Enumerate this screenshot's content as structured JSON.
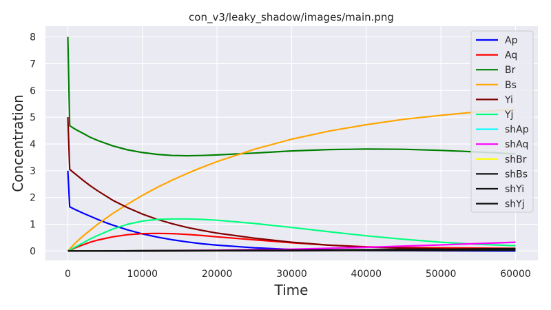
{
  "chart_data": {
    "type": "line",
    "title": "con_v3/leaky_shadow/images/main.png",
    "xlabel": "Time",
    "ylabel": "Concentration",
    "xlim": [
      -3000,
      63000
    ],
    "ylim": [
      -0.35,
      8.4
    ],
    "xticks": [
      0,
      10000,
      20000,
      30000,
      40000,
      50000,
      60000
    ],
    "yticks": [
      0,
      1,
      2,
      3,
      4,
      5,
      6,
      7,
      8
    ],
    "grid": true,
    "legend_position": "top-right",
    "series": [
      {
        "name": "Ap",
        "color": "#0000ff",
        "x": [
          0,
          250,
          1000,
          2000,
          3000,
          4000,
          5000,
          6000,
          8000,
          10000,
          12000,
          14000,
          16000,
          18000,
          20000,
          25000,
          30000,
          40000,
          50000,
          60000
        ],
        "y": [
          3.0,
          1.65,
          1.55,
          1.42,
          1.3,
          1.18,
          1.07,
          0.97,
          0.79,
          0.64,
          0.52,
          0.42,
          0.34,
          0.27,
          0.22,
          0.12,
          0.06,
          0.02,
          0.01,
          0.0
        ]
      },
      {
        "name": "Aq",
        "color": "#ff0000",
        "x": [
          0,
          250,
          1000,
          2000,
          3000,
          4000,
          6000,
          8000,
          10000,
          12000,
          14000,
          16000,
          18000,
          20000,
          25000,
          30000,
          35000,
          40000,
          45000,
          50000,
          55000,
          60000
        ],
        "y": [
          0.0,
          0.02,
          0.12,
          0.23,
          0.33,
          0.41,
          0.53,
          0.61,
          0.65,
          0.66,
          0.65,
          0.62,
          0.58,
          0.53,
          0.42,
          0.31,
          0.22,
          0.16,
          0.13,
          0.12,
          0.11,
          0.1
        ]
      },
      {
        "name": "Br",
        "color": "#008000",
        "x": [
          0,
          250,
          1000,
          2000,
          3000,
          4000,
          6000,
          8000,
          10000,
          12000,
          14000,
          16000,
          18000,
          20000,
          25000,
          30000,
          35000,
          40000,
          45000,
          50000,
          55000,
          60000
        ],
        "y": [
          8.0,
          4.68,
          4.55,
          4.4,
          4.25,
          4.13,
          3.93,
          3.78,
          3.68,
          3.61,
          3.57,
          3.56,
          3.57,
          3.59,
          3.66,
          3.74,
          3.79,
          3.81,
          3.8,
          3.76,
          3.7,
          3.63
        ]
      },
      {
        "name": "Bs",
        "color": "#ffa500",
        "x": [
          0,
          1000,
          2000,
          3000,
          4000,
          6000,
          8000,
          10000,
          12000,
          14000,
          16000,
          18000,
          20000,
          25000,
          30000,
          35000,
          40000,
          45000,
          50000,
          55000,
          60000
        ],
        "y": [
          0.0,
          0.3,
          0.55,
          0.78,
          1.0,
          1.4,
          1.75,
          2.08,
          2.38,
          2.65,
          2.9,
          3.13,
          3.34,
          3.8,
          4.18,
          4.48,
          4.72,
          4.92,
          5.07,
          5.2,
          5.3
        ]
      },
      {
        "name": "Yi",
        "color": "#800000",
        "x": [
          0,
          250,
          1000,
          2000,
          3000,
          4000,
          6000,
          8000,
          10000,
          12000,
          14000,
          16000,
          18000,
          20000,
          25000,
          30000,
          35000,
          40000,
          45000,
          50000,
          55000,
          60000
        ],
        "y": [
          5.0,
          3.05,
          2.88,
          2.65,
          2.44,
          2.25,
          1.9,
          1.62,
          1.38,
          1.18,
          1.02,
          0.88,
          0.77,
          0.67,
          0.48,
          0.33,
          0.22,
          0.15,
          0.11,
          0.08,
          0.06,
          0.05
        ]
      },
      {
        "name": "Yj",
        "color": "#00ff7f",
        "x": [
          0,
          1000,
          2000,
          3000,
          4000,
          6000,
          8000,
          10000,
          12000,
          14000,
          16000,
          18000,
          20000,
          25000,
          30000,
          35000,
          40000,
          45000,
          50000,
          55000,
          60000
        ],
        "y": [
          0.0,
          0.15,
          0.3,
          0.45,
          0.58,
          0.82,
          1.0,
          1.12,
          1.18,
          1.2,
          1.2,
          1.18,
          1.15,
          1.03,
          0.88,
          0.72,
          0.57,
          0.44,
          0.33,
          0.25,
          0.2
        ]
      },
      {
        "name": "shAp",
        "color": "#00ffff",
        "x": [
          0,
          10000,
          20000,
          30000,
          40000,
          50000,
          60000
        ],
        "y": [
          0.0,
          0.01,
          0.02,
          0.02,
          0.03,
          0.03,
          0.03
        ]
      },
      {
        "name": "shAq",
        "color": "#ff00ff",
        "x": [
          0,
          10000,
          20000,
          30000,
          40000,
          50000,
          60000
        ],
        "y": [
          0.0,
          0.01,
          0.03,
          0.07,
          0.14,
          0.23,
          0.33
        ]
      },
      {
        "name": "shBr",
        "color": "#ffff00",
        "x": [
          0,
          10000,
          20000,
          30000,
          40000,
          50000,
          60000
        ],
        "y": [
          0.0,
          0.01,
          0.01,
          0.02,
          0.03,
          0.04,
          0.05
        ]
      },
      {
        "name": "shBs",
        "color": "#111111",
        "x": [
          0,
          10000,
          20000,
          30000,
          40000,
          50000,
          60000
        ],
        "y": [
          0.0,
          0.01,
          0.02,
          0.03,
          0.05,
          0.07,
          0.09
        ]
      },
      {
        "name": "shYi",
        "color": "#111111",
        "x": [
          0,
          10000,
          20000,
          30000,
          40000,
          50000,
          60000
        ],
        "y": [
          0.0,
          0.01,
          0.02,
          0.03,
          0.04,
          0.05,
          0.06
        ]
      },
      {
        "name": "shYj",
        "color": "#111111",
        "x": [
          0,
          10000,
          20000,
          30000,
          40000,
          50000,
          60000
        ],
        "y": [
          0.0,
          0.0,
          0.01,
          0.01,
          0.02,
          0.02,
          0.03
        ]
      }
    ]
  }
}
